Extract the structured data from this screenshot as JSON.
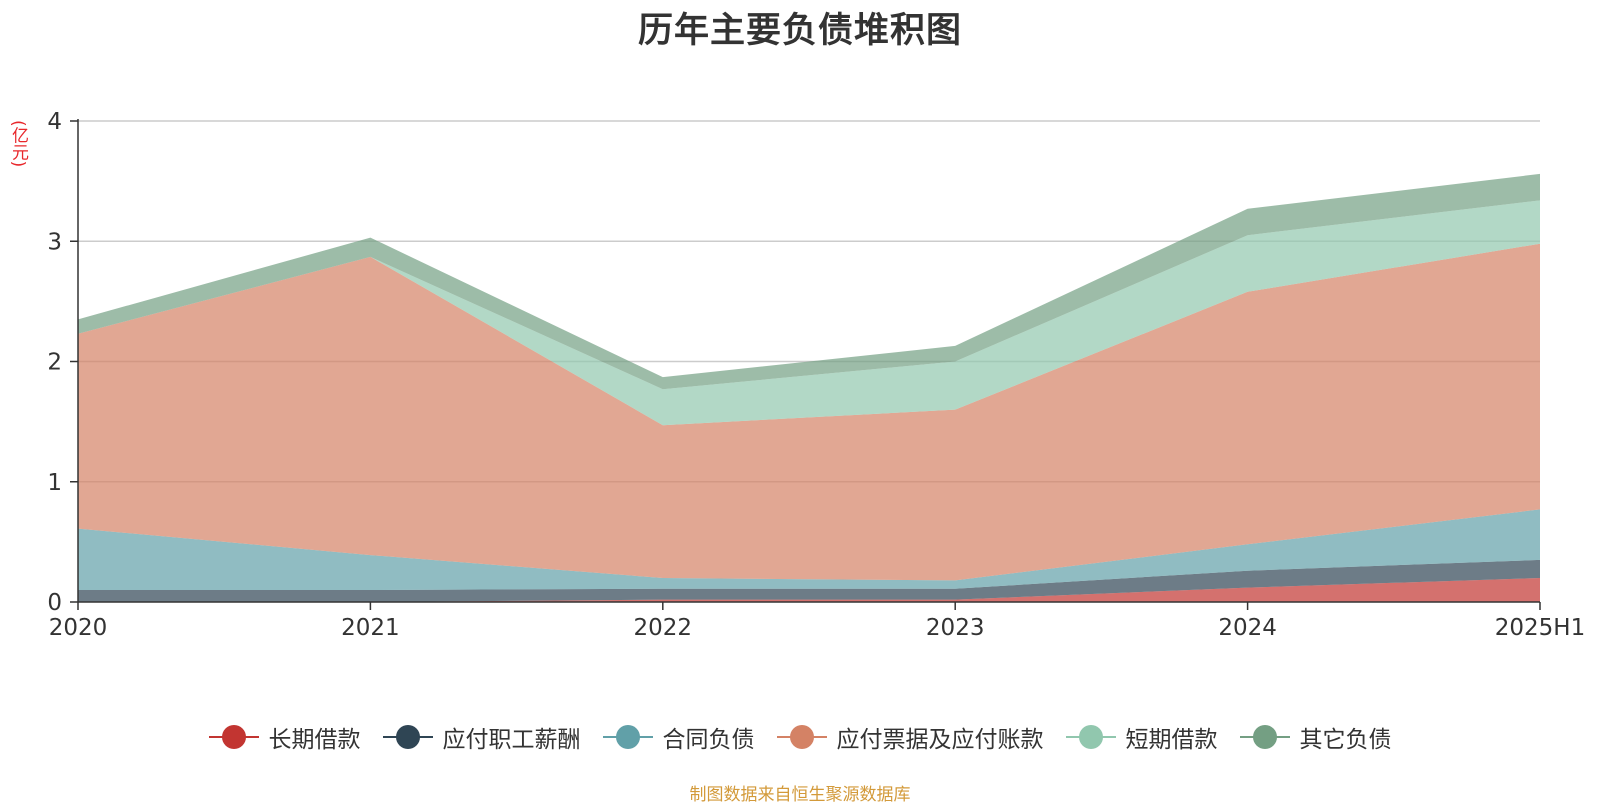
{
  "chart_data": {
    "type": "area",
    "stacked": true,
    "title": "历年主要负债堆积图",
    "ylabel": "(亿元)",
    "categories": [
      "2020",
      "2021",
      "2022",
      "2023",
      "2024",
      "2025H1"
    ],
    "ylim": [
      0,
      4
    ],
    "yticks": [
      "0",
      "1",
      "2",
      "3",
      "4"
    ],
    "grid": true,
    "legend_position": "bottom",
    "series": [
      {
        "name": "长期借款",
        "color": "#c23531",
        "values": [
          0.0,
          0.0,
          0.02,
          0.02,
          0.12,
          0.2
        ]
      },
      {
        "name": "应付职工薪酬",
        "color": "#2f4554",
        "values": [
          0.1,
          0.1,
          0.09,
          0.09,
          0.14,
          0.15
        ]
      },
      {
        "name": "合同负债",
        "color": "#61a0a8",
        "values": [
          0.51,
          0.29,
          0.09,
          0.07,
          0.22,
          0.42
        ]
      },
      {
        "name": "应付票据及应付账款",
        "color": "#d48265",
        "values": [
          1.62,
          2.48,
          1.27,
          1.42,
          2.1,
          2.21
        ]
      },
      {
        "name": "短期借款",
        "color": "#91c7ae",
        "values": [
          0.0,
          0.0,
          0.3,
          0.4,
          0.47,
          0.36
        ]
      },
      {
        "name": "其它负债",
        "color": "#749f83",
        "values": [
          0.12,
          0.16,
          0.1,
          0.13,
          0.22,
          0.22
        ]
      }
    ]
  },
  "source_note": "制图数据来自恒生聚源数据库"
}
